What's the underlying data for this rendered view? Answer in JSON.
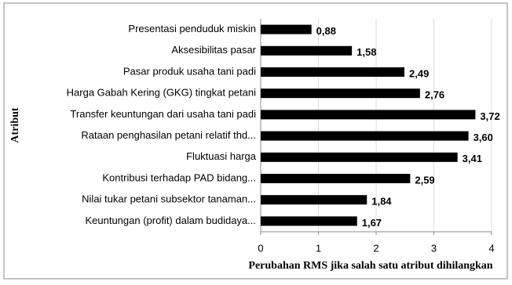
{
  "chart_data": {
    "type": "bar",
    "orientation": "horizontal",
    "categories": [
      "Presentasi penduduk miskin",
      "Aksesibilitas pasar",
      "Pasar produk usaha tani padi",
      "Harga Gabah Kering (GKG) tingkat petani",
      "Transfer keuntungan dari usaha tani padi",
      "Rataan penghasilan petani relatif thd...",
      "Fluktuasi harga",
      "Kontribusi terhadap PAD bidang...",
      "Nilai tukar petani subsektor tanaman...",
      "Keuntungan (profit)  dalam budidaya..."
    ],
    "values": [
      0.88,
      1.58,
      2.49,
      2.76,
      3.72,
      3.6,
      3.41,
      2.59,
      1.84,
      1.67
    ],
    "value_labels": [
      "0,88",
      "1,58",
      "2,49",
      "2,76",
      "3,72",
      "3,60",
      "3,41",
      "2,59",
      "1,84",
      "1,67"
    ],
    "color": "#000000",
    "xlim": [
      0,
      4
    ],
    "xticks": [
      0,
      1,
      2,
      3,
      4
    ],
    "grid": true,
    "xlabel": "Perubahan RMS jika salah satu atribut dihilangkan",
    "ylabel": "Atribut"
  }
}
